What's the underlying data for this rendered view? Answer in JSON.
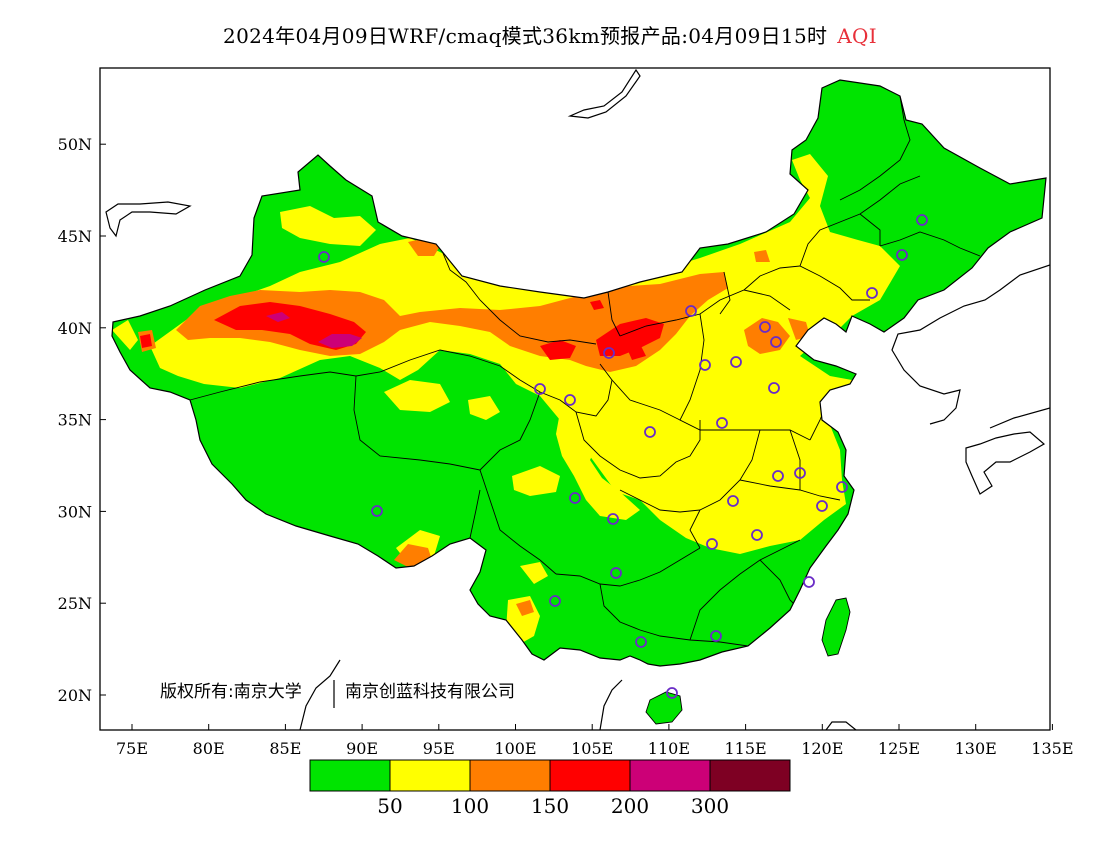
{
  "header": {
    "title_main": "2024年04月09日WRF/cmaq模式36km预报产品:04月09日15时",
    "title_var": "AQI"
  },
  "axes": {
    "lon_labels": [
      "75E",
      "80E",
      "85E",
      "90E",
      "95E",
      "100E",
      "105E",
      "110E",
      "115E",
      "120E",
      "125E",
      "130E",
      "135E"
    ],
    "lat_labels": [
      "20N",
      "25N",
      "30N",
      "35N",
      "40N",
      "45N",
      "50N"
    ]
  },
  "copyright": {
    "left": "版权所有:南京大学",
    "right": "南京创蓝科技有限公司"
  },
  "legend": {
    "colors": [
      "#00e400",
      "#ffff00",
      "#ff7e00",
      "#ff0000",
      "#cc0077",
      "#7e0023"
    ],
    "thresholds": [
      "50",
      "100",
      "150",
      "200",
      "300"
    ]
  },
  "colors": {
    "sea": "#ffffff",
    "border": "#000000",
    "station": "#6a2cc6"
  }
}
